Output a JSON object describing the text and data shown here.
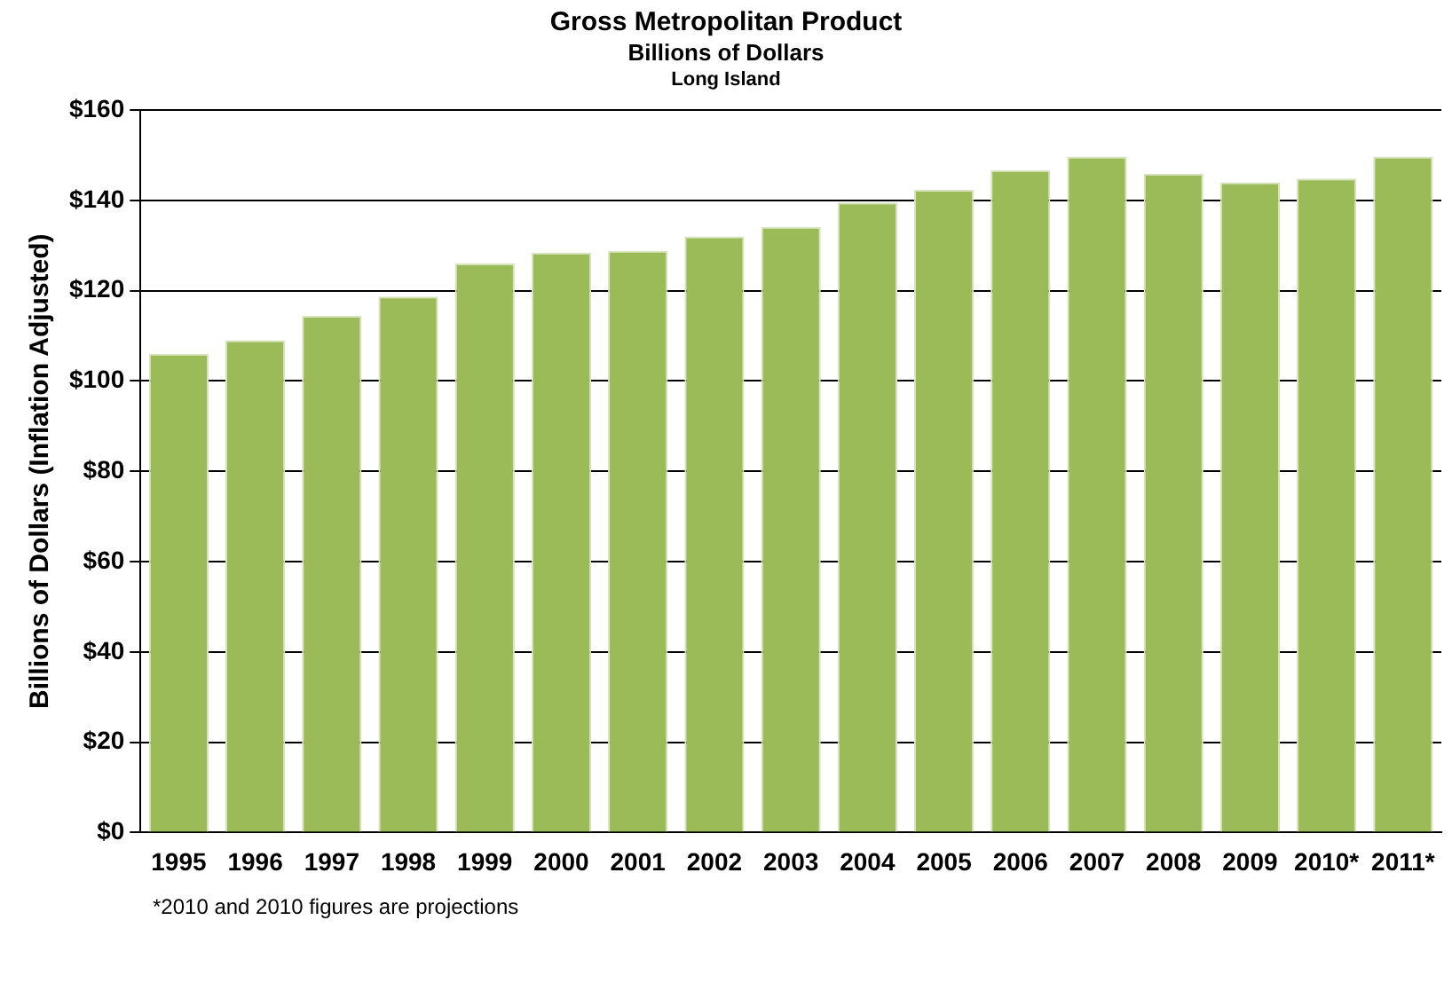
{
  "chart_data": {
    "type": "bar",
    "title": "Gross Metropolitan Product",
    "subtitle": "Billions of Dollars",
    "ylabel": "Billions of Dollars (Inflation Adjusted)",
    "annotations": [
      "Long Island",
      "*2010 and 2010 figures are projections"
    ],
    "categories": [
      "1995",
      "1996",
      "1997",
      "1998",
      "1999",
      "2000",
      "2001",
      "2002",
      "2003",
      "2004",
      "2005",
      "2006",
      "2007",
      "2008",
      "2009",
      "2010*",
      "2011*"
    ],
    "values": [
      106,
      109,
      114.4,
      118.7,
      126,
      128.4,
      128.8,
      132,
      134.1,
      139.5,
      142.3,
      146.7,
      149.7,
      145.9,
      144,
      144.8,
      149.7
    ],
    "color": "#9bbb59",
    "ylim": [
      0,
      160
    ],
    "yticks": [
      {
        "value": 0,
        "label": "$0"
      },
      {
        "value": 20,
        "label": "$20"
      },
      {
        "value": 40,
        "label": "$40"
      },
      {
        "value": 60,
        "label": "$60"
      },
      {
        "value": 80,
        "label": "$80"
      },
      {
        "value": 100,
        "label": "$100"
      },
      {
        "value": 120,
        "label": "$120"
      },
      {
        "value": 140,
        "label": "$140"
      },
      {
        "value": 160,
        "label": "$160"
      }
    ],
    "grid": "y",
    "legend": false
  }
}
